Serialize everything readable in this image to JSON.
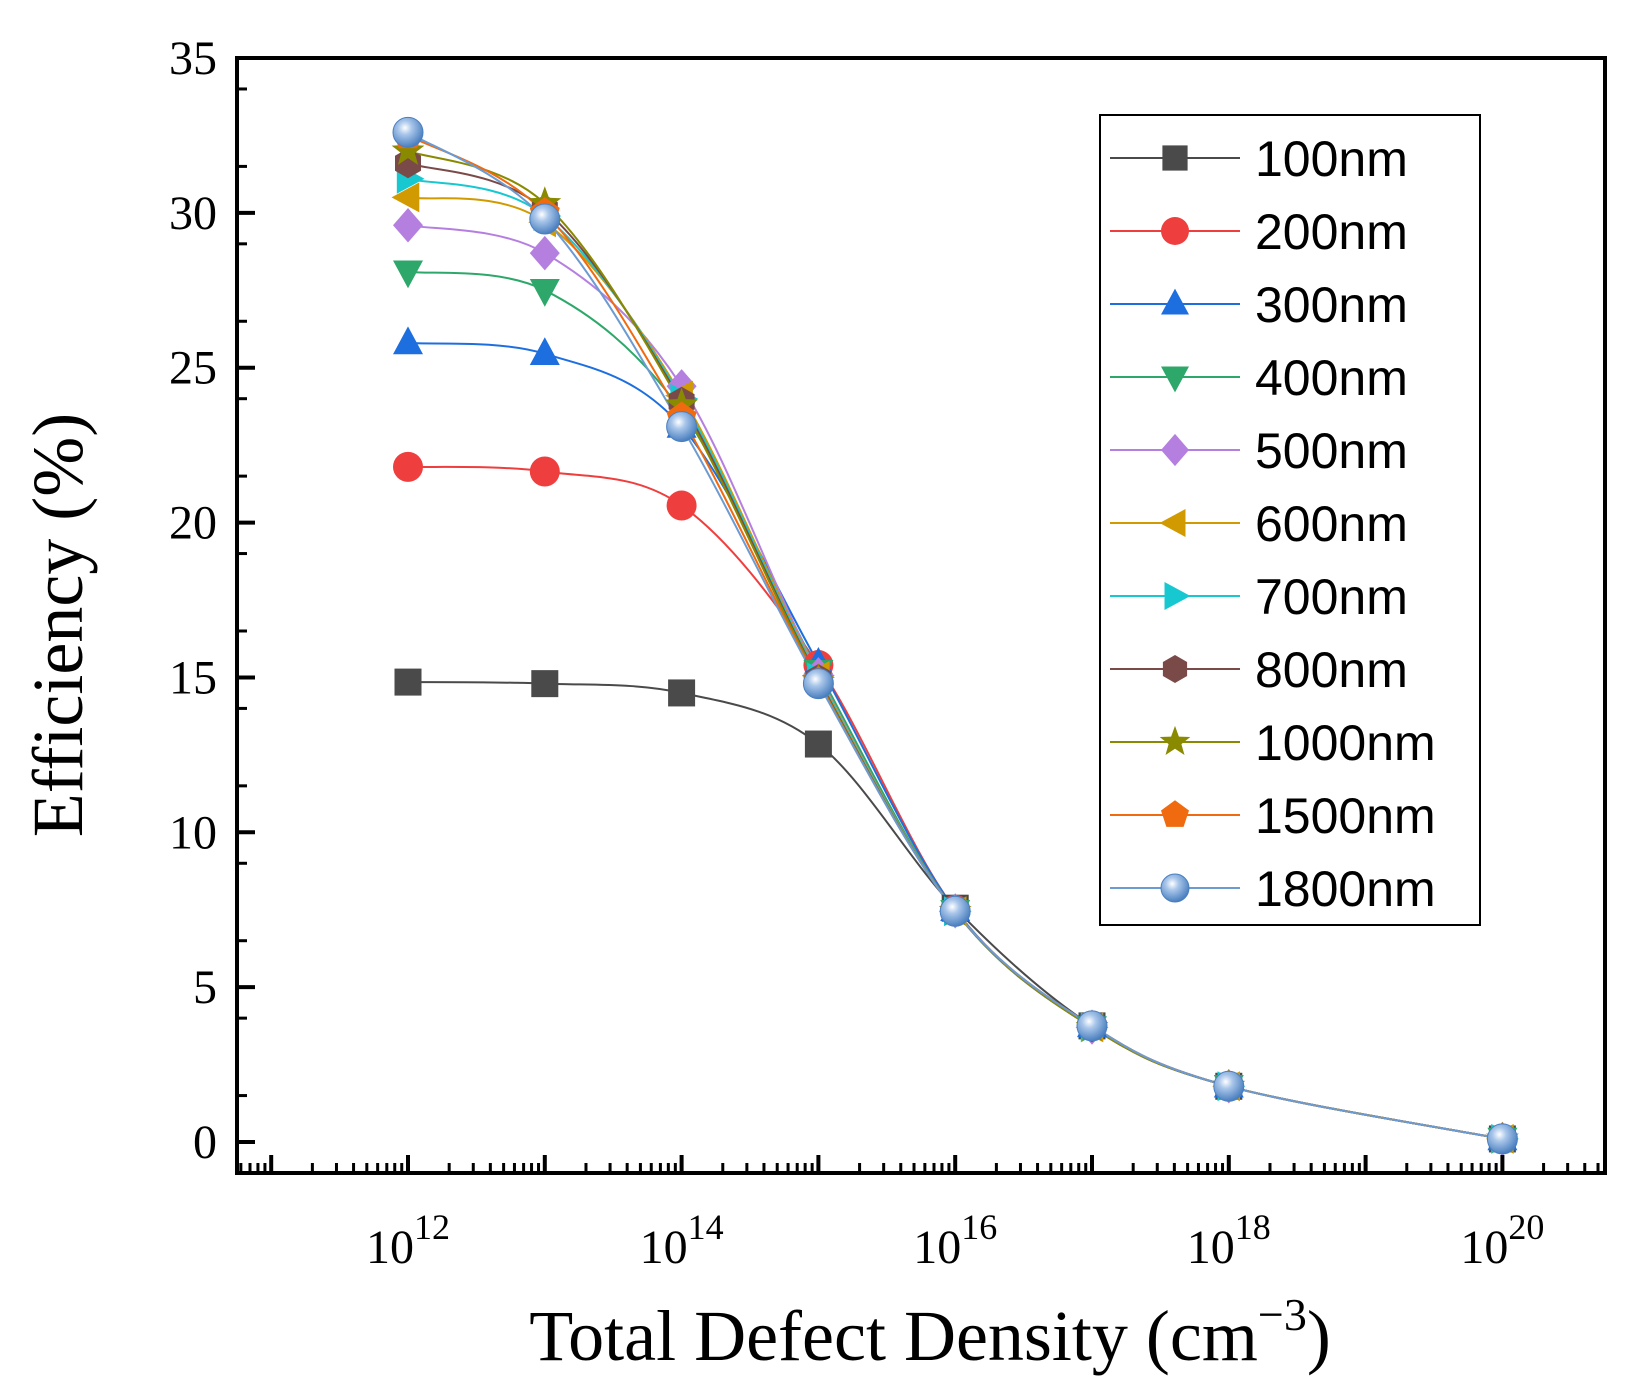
{
  "chart_data": {
    "type": "scatter",
    "title": "",
    "xlabel": "Total Defect Density (cm",
    "xlabel_superscript": "−3",
    "xlabel_suffix": ")",
    "ylabel": "Efficiency (%)",
    "xscale": "log10",
    "xlim_exp": [
      10.75,
      20.75
    ],
    "ylim": [
      -1,
      35
    ],
    "yticks": [
      0,
      5,
      10,
      15,
      20,
      25,
      30,
      35
    ],
    "xticks": [
      {
        "exp": 12,
        "base": "10",
        "sup": "12"
      },
      {
        "exp": 14,
        "base": "10",
        "sup": "14"
      },
      {
        "exp": 16,
        "base": "10",
        "sup": "16"
      },
      {
        "exp": 18,
        "base": "10",
        "sup": "18"
      },
      {
        "exp": 20,
        "base": "10",
        "sup": "20"
      }
    ],
    "x": [
      1000000000000.0,
      10000000000000.0,
      100000000000000.0,
      1000000000000000.0,
      1e+16,
      1e+17,
      1e+18,
      1e+20
    ],
    "legend_position": "top-right",
    "series": [
      {
        "name": "100nm",
        "marker": "square",
        "color": "#4a4a4a",
        "values": [
          14.85,
          14.8,
          14.5,
          12.85,
          7.55,
          3.75,
          1.8,
          0.1
        ]
      },
      {
        "name": "200nm",
        "marker": "circle",
        "color": "#ef3e3e",
        "values": [
          21.8,
          21.65,
          20.55,
          15.4,
          7.5,
          3.75,
          1.8,
          0.1
        ]
      },
      {
        "name": "300nm",
        "marker": "triangle-up",
        "color": "#1d6fe0",
        "values": [
          25.8,
          25.45,
          23.1,
          15.45,
          7.5,
          3.75,
          1.8,
          0.1
        ]
      },
      {
        "name": "400nm",
        "marker": "triangle-down",
        "color": "#2ea86a",
        "values": [
          28.1,
          27.5,
          23.6,
          15.2,
          7.45,
          3.7,
          1.8,
          0.1
        ]
      },
      {
        "name": "500nm",
        "marker": "diamond",
        "color": "#b57fe0",
        "values": [
          29.6,
          28.7,
          24.4,
          15.1,
          7.45,
          3.7,
          1.8,
          0.1
        ]
      },
      {
        "name": "600nm",
        "marker": "triangle-left",
        "color": "#d19a00",
        "values": [
          30.5,
          29.7,
          24.1,
          15.05,
          7.45,
          3.7,
          1.8,
          0.1
        ]
      },
      {
        "name": "700nm",
        "marker": "triangle-right",
        "color": "#18c8d0",
        "values": [
          31.1,
          29.9,
          24.0,
          15.0,
          7.45,
          3.7,
          1.8,
          0.1
        ]
      },
      {
        "name": "800nm",
        "marker": "hexagon",
        "color": "#7a4a48",
        "values": [
          31.6,
          30.1,
          23.9,
          14.95,
          7.45,
          3.7,
          1.8,
          0.1
        ]
      },
      {
        "name": "1000nm",
        "marker": "star",
        "color": "#8a8a00",
        "values": [
          32.0,
          30.3,
          23.8,
          14.9,
          7.45,
          3.7,
          1.8,
          0.1
        ]
      },
      {
        "name": "1500nm",
        "marker": "pentagon",
        "color": "#f06a10",
        "values": [
          32.5,
          30.0,
          23.4,
          14.85,
          7.45,
          3.75,
          1.8,
          0.1
        ]
      },
      {
        "name": "1800nm",
        "marker": "sphere",
        "color": "#6c9bd2",
        "values": [
          32.6,
          29.8,
          23.1,
          14.8,
          7.45,
          3.75,
          1.8,
          0.1
        ]
      }
    ]
  }
}
